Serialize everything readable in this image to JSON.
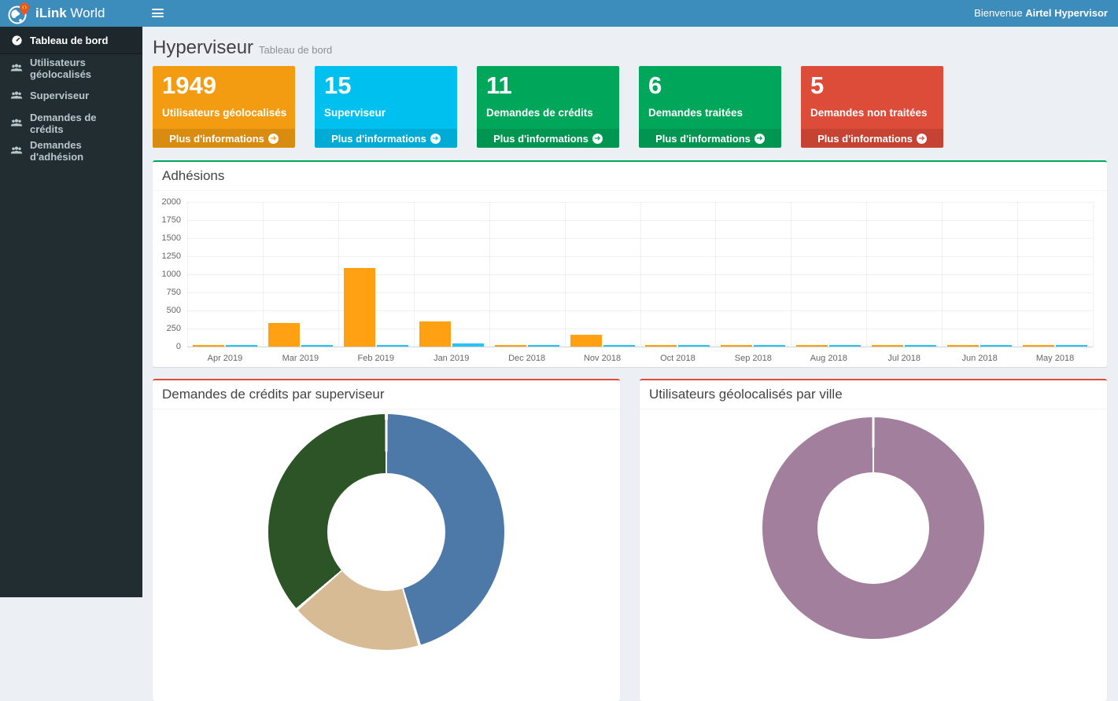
{
  "topbar": {
    "brand_bold": "iLink",
    "brand_regular": "World",
    "welcome_prefix": "Bienvenue",
    "welcome_user": "Airtel Hypervisor",
    "bar_color": "#3c8dbc"
  },
  "sidebar": {
    "bg_color": "#222d32",
    "items": [
      {
        "label": "Tableau de bord",
        "icon": "dashboard-icon",
        "active": true
      },
      {
        "label": "Utilisateurs géolocalisés",
        "icon": "users-icon",
        "active": false
      },
      {
        "label": "Superviseur",
        "icon": "users-icon",
        "active": false
      },
      {
        "label": "Demandes de crédits",
        "icon": "users-icon",
        "active": false
      },
      {
        "label": "Demandes d'adhésion",
        "icon": "users-icon",
        "active": false
      }
    ]
  },
  "page_header": {
    "title": "Hyperviseur",
    "subtitle": "Tableau de bord"
  },
  "stat_cards": [
    {
      "value": "1949",
      "label": "Utilisateurs géolocalisés",
      "color": "#f39c12",
      "link_label": "Plus d'informations",
      "link_icon": "arrow-circle-right-icon"
    },
    {
      "value": "15",
      "label": "Superviseur",
      "color": "#00c0ef",
      "link_label": "Plus d'informations",
      "link_icon": "arrow-circle-right-icon"
    },
    {
      "value": "11",
      "label": "Demandes de crédits",
      "color": "#00a65a",
      "link_label": "Plus d'informations",
      "link_icon": "arrow-circle-right-icon"
    },
    {
      "value": "6",
      "label": "Demandes traitées",
      "color": "#00a65a",
      "link_label": "Plus d'informations",
      "link_icon": "arrow-circle-right-icon"
    },
    {
      "value": "5",
      "label": "Demandes non traitées",
      "color": "#dd4b39",
      "link_label": "Plus d'informations",
      "link_icon": "arrow-circle-right-icon"
    }
  ],
  "chart_data": [
    {
      "type": "bar",
      "title": "Adhésions",
      "accent_color": "#00a65a",
      "categories": [
        "Apr 2019",
        "Mar 2019",
        "Feb 2019",
        "Jan 2019",
        "Dec 2018",
        "Nov 2018",
        "Oct 2018",
        "Sep 2018",
        "Aug 2018",
        "Jul 2018",
        "Jun 2018",
        "May 2018"
      ],
      "series": [
        {
          "name": "orange",
          "color": "#ffa113",
          "values": [
            25,
            330,
            1090,
            350,
            25,
            160,
            25,
            25,
            25,
            25,
            25,
            25
          ]
        },
        {
          "name": "blue",
          "color": "#2bc4f2",
          "values": [
            20,
            20,
            20,
            45,
            20,
            20,
            20,
            20,
            20,
            20,
            20,
            20
          ]
        }
      ],
      "ylabel": "",
      "xlabel": "",
      "ylim": [
        0,
        2000
      ],
      "ytick_step": 250,
      "grid": true,
      "legend": "none"
    },
    {
      "type": "pie",
      "title": "Demandes de crédits par superviseur",
      "accent_color": "#dd4b39",
      "values": [
        5,
        2,
        4
      ],
      "colors": [
        "#4d79a9",
        "#d6bb94",
        "#2c5427"
      ],
      "legend": "none",
      "cutout_percent": 50
    },
    {
      "type": "pie",
      "title": "Utilisateurs géolocalisés par ville",
      "accent_color": "#dd4b39",
      "values": [
        1949
      ],
      "colors": [
        "#a27f9c"
      ],
      "legend": "none",
      "cutout_percent": 50
    }
  ]
}
